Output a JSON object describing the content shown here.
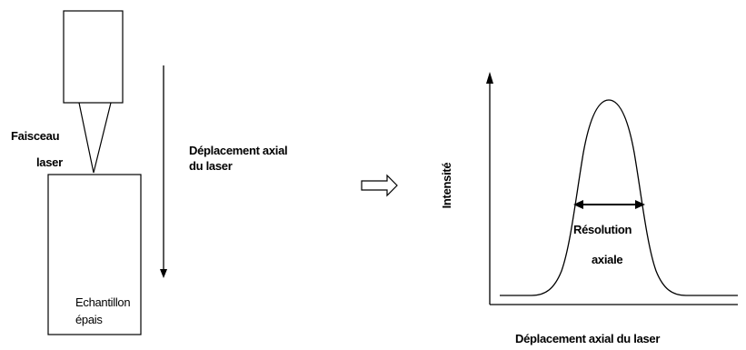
{
  "left_panel": {
    "beam_label_line1": "Faisceau",
    "beam_label_line2": "laser",
    "displacement_label_line1": "Déplacement axial",
    "displacement_label_line2": "du laser",
    "sample_label_line1": "Echantillon",
    "sample_label_line2": "épais"
  },
  "right_panel": {
    "y_axis_label": "Intensité",
    "x_axis_label": "Déplacement axial du laser",
    "resolution_label_line1": "Résolution",
    "resolution_label_line2": "axiale"
  },
  "colors": {
    "line": "#000000",
    "background": "#ffffff"
  },
  "icons": {
    "transition": "hollow-right-arrow-icon"
  }
}
